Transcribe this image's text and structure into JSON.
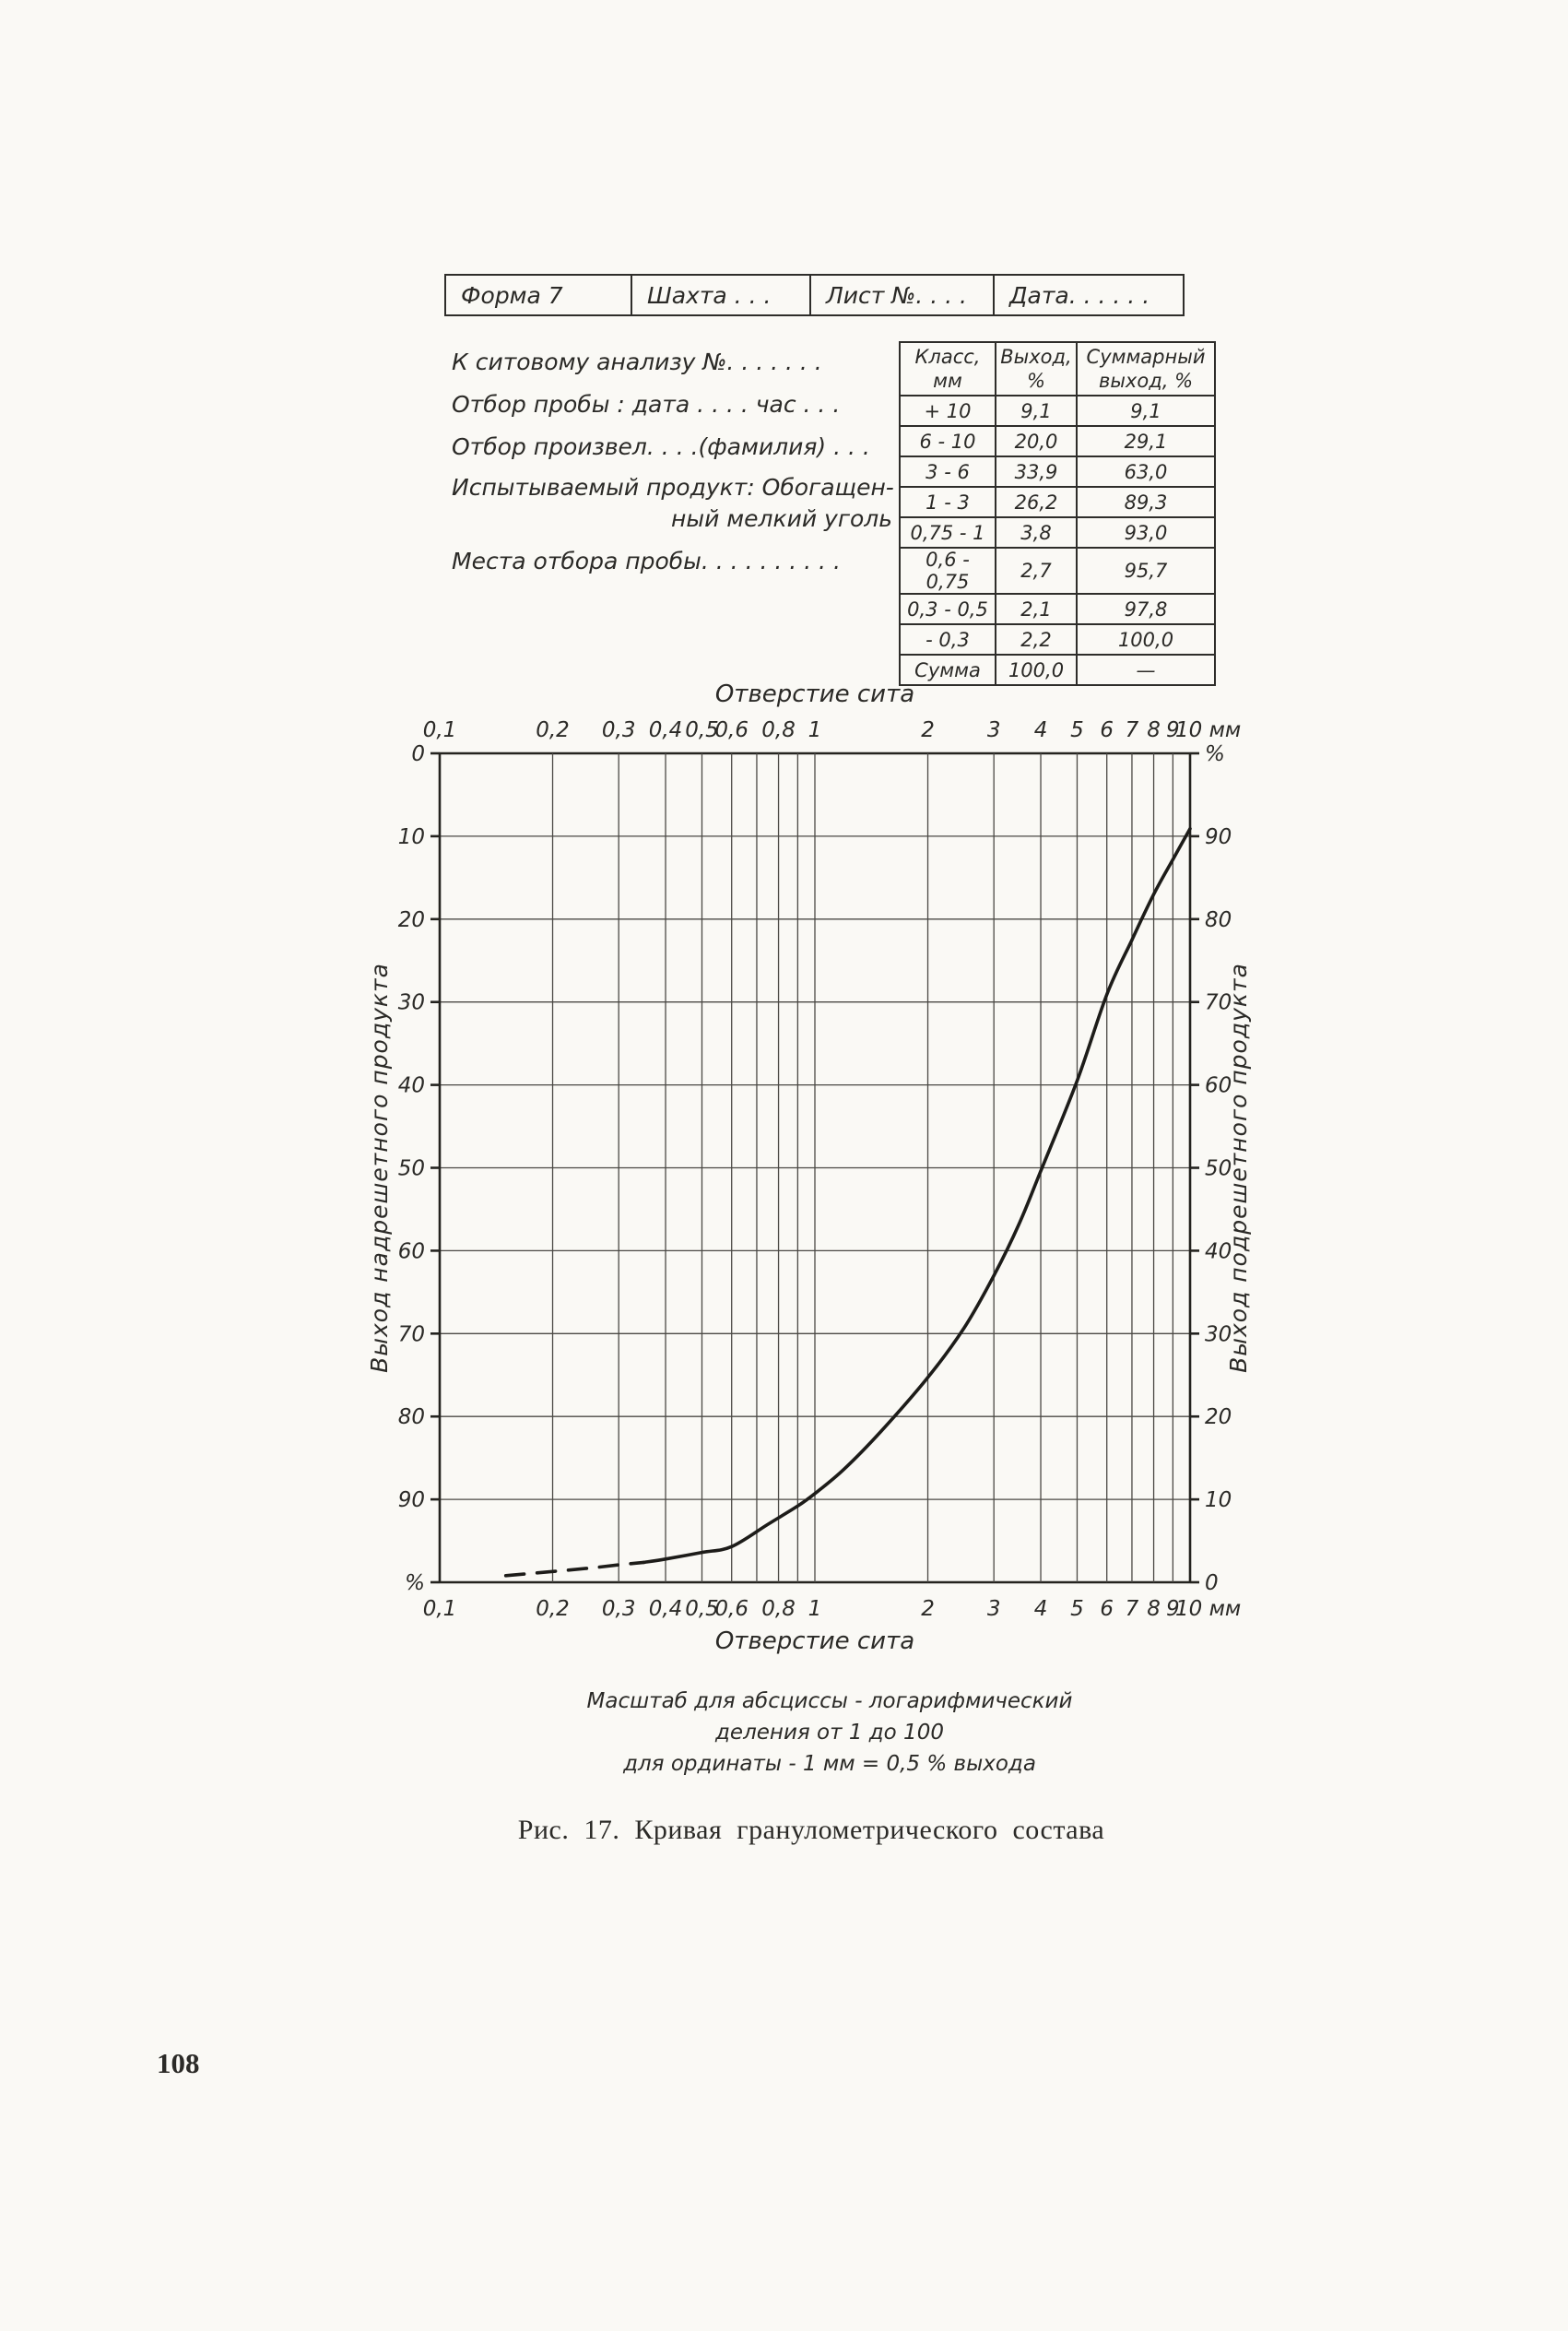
{
  "paper_color": "#faf9f5",
  "ink_color": "#2b2a27",
  "form_header": {
    "cells": [
      "Форма 7",
      "Шахта . . .",
      "Лист №. . . .",
      "Дата. . . . . ."
    ]
  },
  "info_lines": [
    "К ситовому анализу №. . . . .   . .",
    "Отбор пробы : дата . . . .  час . . .",
    "Отбор произвел. . . .(фамилия) . . .",
    "Испытываемый продукт: Обогащен-",
    "ный мелкий уголь",
    "Места отбора пробы. .  . . . . . . . ."
  ],
  "analysis_table": {
    "headers": [
      "Класс,\nмм",
      "Выход,\n%",
      "Суммарный\nвыход, %"
    ],
    "rows": [
      [
        "+ 10",
        "9,1",
        "9,1"
      ],
      [
        "6  -  10",
        "20,0",
        "29,1"
      ],
      [
        "3  -  6",
        "33,9",
        "63,0"
      ],
      [
        "1  -  3",
        "26,2",
        "89,3"
      ],
      [
        "0,75 - 1",
        "3,8",
        "93,0"
      ],
      [
        "0,6 - 0,75",
        "2,7",
        "95,7"
      ],
      [
        "0,3 - 0,5",
        "2,1",
        "97,8"
      ],
      [
        "-  0,3",
        "2,2",
        "100,0"
      ],
      [
        "Сумма",
        "100,0",
        "—"
      ]
    ]
  },
  "chart_data": {
    "type": "line",
    "x_scale": "log",
    "x_range": [
      0.1,
      10
    ],
    "y_range": [
      0,
      100
    ],
    "x_unit": "мм",
    "title_top": "Отверстие сита",
    "title_bottom": "Отверстие сита",
    "ylabel_left": "Выход надрешетного продукта",
    "ylabel_right": "Выход подрешетного продукта",
    "grid": true,
    "x_gridlines": [
      0.1,
      0.2,
      0.3,
      0.4,
      0.5,
      0.6,
      0.7,
      0.8,
      0.9,
      1,
      2,
      3,
      4,
      5,
      6,
      7,
      8,
      9,
      10
    ],
    "y_gridlines": [
      0,
      10,
      20,
      30,
      40,
      50,
      60,
      70,
      80,
      90,
      100
    ],
    "x_tick_labels": [
      {
        "v": 0.1,
        "t": "0,1"
      },
      {
        "v": 0.2,
        "t": "0,2"
      },
      {
        "v": 0.3,
        "t": "0,3"
      },
      {
        "v": 0.4,
        "t": "0,4"
      },
      {
        "v": 0.5,
        "t": "0,5"
      },
      {
        "v": 0.6,
        "t": "0,6"
      },
      {
        "v": 0.8,
        "t": "0,8"
      },
      {
        "v": 1,
        "t": "1"
      },
      {
        "v": 2,
        "t": "2"
      },
      {
        "v": 3,
        "t": "3"
      },
      {
        "v": 4,
        "t": "4"
      },
      {
        "v": 5,
        "t": "5"
      },
      {
        "v": 6,
        "t": "6"
      },
      {
        "v": 7,
        "t": "7"
      },
      {
        "v": 8,
        "t": "8"
      },
      {
        "v": 9,
        "t": "9"
      },
      {
        "v": 10,
        "t": "10 мм"
      }
    ],
    "y_tick_labels_left": [
      {
        "v": 0,
        "t": "0"
      },
      {
        "v": 10,
        "t": "10"
      },
      {
        "v": 20,
        "t": "20"
      },
      {
        "v": 30,
        "t": "30"
      },
      {
        "v": 40,
        "t": "40"
      },
      {
        "v": 50,
        "t": "50"
      },
      {
        "v": 60,
        "t": "60"
      },
      {
        "v": 70,
        "t": "70"
      },
      {
        "v": 80,
        "t": "80"
      },
      {
        "v": 90,
        "t": "90"
      },
      {
        "v": 100,
        "t": "%"
      }
    ],
    "y_tick_labels_right": [
      {
        "v": 0,
        "t": "%"
      },
      {
        "v": 10,
        "t": "90"
      },
      {
        "v": 20,
        "t": "80"
      },
      {
        "v": 30,
        "t": "70"
      },
      {
        "v": 40,
        "t": "60"
      },
      {
        "v": 50,
        "t": "50"
      },
      {
        "v": 60,
        "t": "40"
      },
      {
        "v": 70,
        "t": "30"
      },
      {
        "v": 80,
        "t": "20"
      },
      {
        "v": 90,
        "t": "10"
      },
      {
        "v": 100,
        "t": "0"
      }
    ],
    "series": [
      {
        "name": "суммарная кривая",
        "style": "solid",
        "points": [
          [
            0.35,
            97.6
          ],
          [
            0.4,
            97.2
          ],
          [
            0.5,
            96.4
          ],
          [
            0.6,
            95.7
          ],
          [
            0.75,
            93.0
          ],
          [
            0.9,
            90.8
          ],
          [
            1,
            89.3
          ],
          [
            1.2,
            86.3
          ],
          [
            1.5,
            81.8
          ],
          [
            2,
            75.3
          ],
          [
            2.5,
            69.3
          ],
          [
            3,
            63.0
          ],
          [
            3.5,
            56.8
          ],
          [
            4,
            50.4
          ],
          [
            5,
            39.5
          ],
          [
            6,
            29.1
          ],
          [
            7,
            22.5
          ],
          [
            8,
            17.0
          ],
          [
            9,
            12.8
          ],
          [
            10,
            9.1
          ]
        ]
      },
      {
        "name": "экстраполяция-пунктир",
        "style": "dashed",
        "points": [
          [
            0.15,
            99.2
          ],
          [
            0.2,
            98.7
          ],
          [
            0.25,
            98.3
          ],
          [
            0.3,
            97.9
          ],
          [
            0.35,
            97.6
          ]
        ]
      }
    ]
  },
  "scale_notes": [
    "Масштаб для абсциссы - логарифмический",
    "деления от 1 до 100",
    "для ординаты - 1 мм = 0,5 % выхода"
  ],
  "figure_caption": "Рис. 17. Кривая гранулометрического состава",
  "page_number": "108"
}
